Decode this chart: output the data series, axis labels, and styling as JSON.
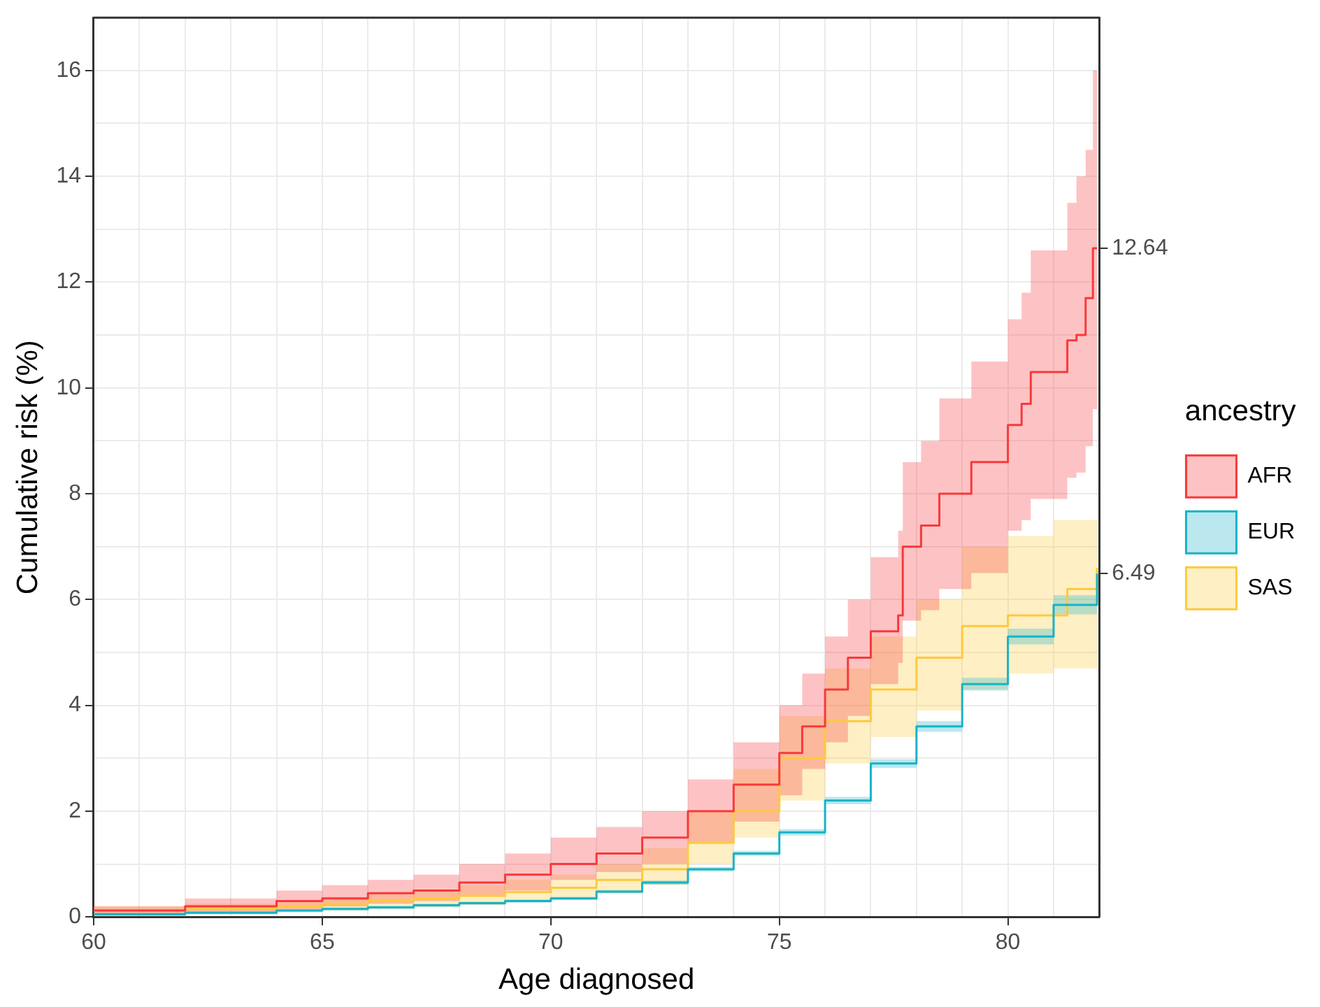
{
  "chart_data": {
    "type": "step",
    "xlabel": "Age diagnosed",
    "ylabel": "Cumulative risk (%)",
    "legend_title": "ancestry",
    "legend": "right",
    "grid": true,
    "xlim": [
      60,
      82
    ],
    "ylim": [
      0,
      17
    ],
    "xticks": [
      60,
      {
        "value": 61,
        "label": null
      },
      {
        "value": 62,
        "label": null
      },
      {
        "value": 63,
        "label": null
      },
      {
        "value": 64,
        "label": null
      },
      65,
      {
        "value": 66,
        "label": null
      },
      {
        "value": 67,
        "label": null
      },
      {
        "value": 68,
        "label": null
      },
      {
        "value": 69,
        "label": null
      },
      70,
      {
        "value": 71,
        "label": null
      },
      {
        "value": 72,
        "label": null
      },
      {
        "value": 73,
        "label": null
      },
      {
        "value": 74,
        "label": null
      },
      75,
      {
        "value": 76,
        "label": null
      },
      {
        "value": 77,
        "label": null
      },
      {
        "value": 78,
        "label": null
      },
      {
        "value": 79,
        "label": null
      },
      80,
      {
        "value": 81,
        "label": null
      }
    ],
    "yticks": [
      0,
      {
        "value": 1,
        "label": null
      },
      2,
      {
        "value": 3,
        "label": null
      },
      4,
      {
        "value": 5,
        "label": null
      },
      6,
      {
        "value": 7,
        "label": null
      },
      8,
      {
        "value": 9,
        "label": null
      },
      10,
      {
        "value": 11,
        "label": null
      },
      12,
      {
        "value": 13,
        "label": null
      },
      14,
      {
        "value": 15,
        "label": null
      },
      16
    ],
    "y2lim": [
      0,
      17
    ],
    "y2ticks": [
      6.49,
      12.64
    ],
    "series": [
      {
        "name": "AFR",
        "color": "#f8393b",
        "x": [
          60,
          62,
          64,
          65,
          66,
          67,
          68,
          69,
          70,
          71,
          72,
          73,
          74,
          75,
          75.5,
          76,
          76.5,
          77,
          77.6,
          77.7,
          78.1,
          78.5,
          79.2,
          80,
          80.3,
          80.5,
          81.3,
          81.5,
          81.7,
          81.86,
          81.95
        ],
        "values": [
          0.12,
          0.2,
          0.3,
          0.35,
          0.45,
          0.5,
          0.65,
          0.8,
          1.0,
          1.2,
          1.5,
          2.0,
          2.5,
          3.1,
          3.6,
          4.3,
          4.9,
          5.4,
          5.7,
          7.0,
          7.4,
          8.0,
          8.6,
          9.3,
          9.7,
          10.3,
          10.9,
          11.0,
          11.7,
          12.64,
          12.64
        ],
        "lower": [
          0.05,
          0.1,
          0.15,
          0.2,
          0.25,
          0.3,
          0.4,
          0.5,
          0.7,
          0.85,
          1.0,
          1.4,
          1.8,
          2.3,
          2.8,
          3.3,
          3.8,
          4.4,
          4.8,
          5.6,
          5.8,
          6.2,
          6.5,
          7.3,
          7.5,
          7.9,
          8.3,
          8.4,
          8.9,
          9.6,
          9.6
        ],
        "upper": [
          0.2,
          0.35,
          0.5,
          0.6,
          0.7,
          0.8,
          1.0,
          1.2,
          1.5,
          1.7,
          2.0,
          2.6,
          3.3,
          4.0,
          4.6,
          5.3,
          6.0,
          6.8,
          7.3,
          8.6,
          9.0,
          9.8,
          10.5,
          11.3,
          11.8,
          12.6,
          13.5,
          14.0,
          14.5,
          16.0,
          16.0
        ]
      },
      {
        "name": "EUR",
        "color": "#19b2c6",
        "x": [
          60,
          62,
          64,
          65,
          66,
          67,
          68,
          69,
          70,
          71,
          72,
          73,
          74,
          75,
          76,
          77,
          78,
          79,
          80,
          81,
          81.95
        ],
        "values": [
          0.05,
          0.08,
          0.12,
          0.15,
          0.18,
          0.22,
          0.26,
          0.3,
          0.35,
          0.48,
          0.65,
          0.9,
          1.2,
          1.6,
          2.2,
          2.9,
          3.6,
          4.4,
          5.3,
          5.9,
          6.49
        ],
        "lower": [
          0.02,
          0.05,
          0.09,
          0.12,
          0.15,
          0.19,
          0.23,
          0.27,
          0.32,
          0.45,
          0.61,
          0.86,
          1.15,
          1.54,
          2.13,
          2.82,
          3.5,
          4.28,
          5.15,
          5.72,
          6.3
        ],
        "upper": [
          0.08,
          0.11,
          0.15,
          0.18,
          0.21,
          0.25,
          0.29,
          0.33,
          0.38,
          0.51,
          0.69,
          0.94,
          1.25,
          1.66,
          2.27,
          2.98,
          3.7,
          4.52,
          5.45,
          6.08,
          6.7
        ]
      },
      {
        "name": "SAS",
        "color": "#fdc93d",
        "x": [
          60,
          62,
          64,
          65,
          66,
          67,
          68,
          69,
          70,
          71,
          72,
          73,
          74,
          75,
          76,
          77,
          78,
          79,
          80,
          81,
          81.3,
          81.95
        ],
        "values": [
          0.12,
          0.15,
          0.2,
          0.25,
          0.3,
          0.35,
          0.4,
          0.47,
          0.55,
          0.7,
          0.9,
          1.4,
          2.0,
          3.0,
          3.7,
          4.3,
          4.9,
          5.5,
          5.7,
          5.7,
          6.2,
          6.6
        ],
        "lower": [
          0.05,
          0.07,
          0.1,
          0.12,
          0.15,
          0.18,
          0.22,
          0.28,
          0.35,
          0.45,
          0.6,
          1.0,
          1.5,
          2.2,
          2.9,
          3.4,
          3.9,
          4.3,
          4.6,
          4.7,
          4.7,
          5.0
        ],
        "upper": [
          0.2,
          0.25,
          0.3,
          0.38,
          0.45,
          0.52,
          0.6,
          0.7,
          0.8,
          1.0,
          1.3,
          2.0,
          2.8,
          3.8,
          4.7,
          5.3,
          6.0,
          7.0,
          7.2,
          7.5,
          7.5,
          8.1
        ]
      }
    ]
  }
}
